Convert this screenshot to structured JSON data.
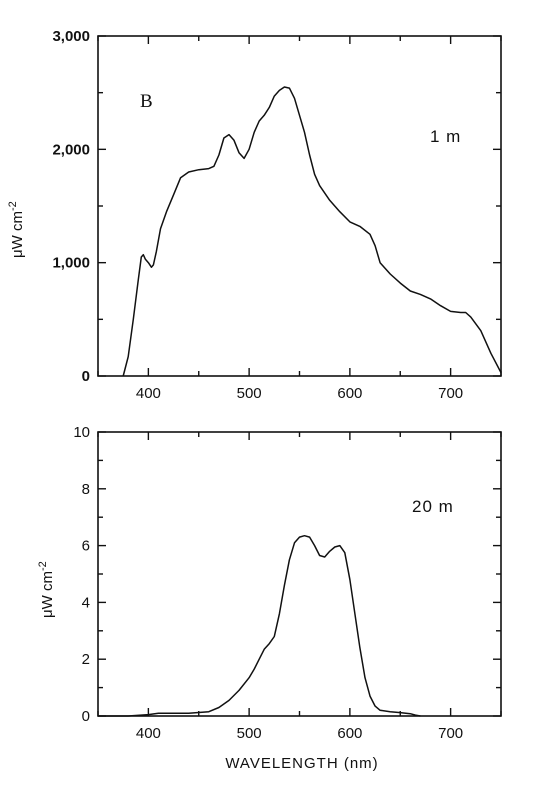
{
  "chart_data": [
    {
      "type": "line",
      "panel_label": "B",
      "annotation": "1 m",
      "title": "",
      "xlabel": "",
      "ylabel_main": "μW cm",
      "ylabel_sup": "-2",
      "xlim": [
        350,
        750
      ],
      "ylim": [
        0,
        3000
      ],
      "x_ticks": [
        400,
        500,
        600,
        700
      ],
      "x_tick_labels": [
        "400",
        "500",
        "600",
        "700"
      ],
      "y_ticks": [
        0,
        1000,
        2000,
        3000
      ],
      "y_tick_labels": [
        "0",
        "1,000",
        "2,000",
        "3,000"
      ],
      "grid": false,
      "series": [
        {
          "x": [
            375,
            380,
            385,
            390,
            393,
            395,
            397,
            400,
            403,
            405,
            408,
            412,
            418,
            425,
            432,
            440,
            450,
            460,
            465,
            470,
            475,
            480,
            485,
            490,
            495,
            500,
            505,
            510,
            515,
            520,
            525,
            530,
            535,
            540,
            545,
            550,
            555,
            560,
            565,
            570,
            580,
            590,
            600,
            610,
            620,
            625,
            630,
            640,
            650,
            660,
            670,
            680,
            690,
            700,
            710,
            715,
            720,
            730,
            740,
            750
          ],
          "y": [
            0,
            170,
            500,
            850,
            1050,
            1070,
            1030,
            1000,
            960,
            980,
            1100,
            1300,
            1450,
            1600,
            1750,
            1800,
            1820,
            1830,
            1850,
            1950,
            2100,
            2130,
            2080,
            1970,
            1920,
            2000,
            2150,
            2250,
            2300,
            2370,
            2470,
            2520,
            2550,
            2540,
            2450,
            2300,
            2150,
            1950,
            1780,
            1680,
            1550,
            1450,
            1360,
            1320,
            1250,
            1150,
            1000,
            900,
            820,
            750,
            720,
            680,
            620,
            570,
            560,
            560,
            520,
            400,
            200,
            30
          ]
        }
      ]
    },
    {
      "type": "line",
      "annotation": "20 m",
      "title": "",
      "xlabel": "WAVELENGTH (nm)",
      "ylabel_main": "μW cm",
      "ylabel_sup": "-2",
      "xlim": [
        350,
        750
      ],
      "ylim": [
        0,
        10
      ],
      "x_ticks": [
        400,
        500,
        600,
        700
      ],
      "x_tick_labels": [
        "400",
        "500",
        "600",
        "700"
      ],
      "y_ticks": [
        0,
        2,
        4,
        6,
        8,
        10
      ],
      "y_tick_labels": [
        "0",
        "2",
        "4",
        "6",
        "8",
        "10"
      ],
      "grid": false,
      "series": [
        {
          "x": [
            350,
            380,
            400,
            410,
            420,
            440,
            460,
            470,
            480,
            490,
            500,
            505,
            510,
            515,
            520,
            525,
            530,
            535,
            540,
            545,
            550,
            555,
            560,
            565,
            570,
            575,
            580,
            585,
            590,
            595,
            600,
            605,
            610,
            615,
            620,
            625,
            630,
            640,
            650,
            660,
            665,
            670
          ],
          "y": [
            0,
            0,
            0.05,
            0.1,
            0.1,
            0.1,
            0.15,
            0.3,
            0.55,
            0.9,
            1.35,
            1.65,
            2.0,
            2.35,
            2.55,
            2.8,
            3.6,
            4.6,
            5.5,
            6.1,
            6.3,
            6.35,
            6.3,
            6.0,
            5.65,
            5.6,
            5.8,
            5.95,
            6.0,
            5.75,
            4.8,
            3.6,
            2.4,
            1.35,
            0.7,
            0.35,
            0.2,
            0.15,
            0.12,
            0.08,
            0.03,
            0
          ]
        }
      ]
    }
  ]
}
